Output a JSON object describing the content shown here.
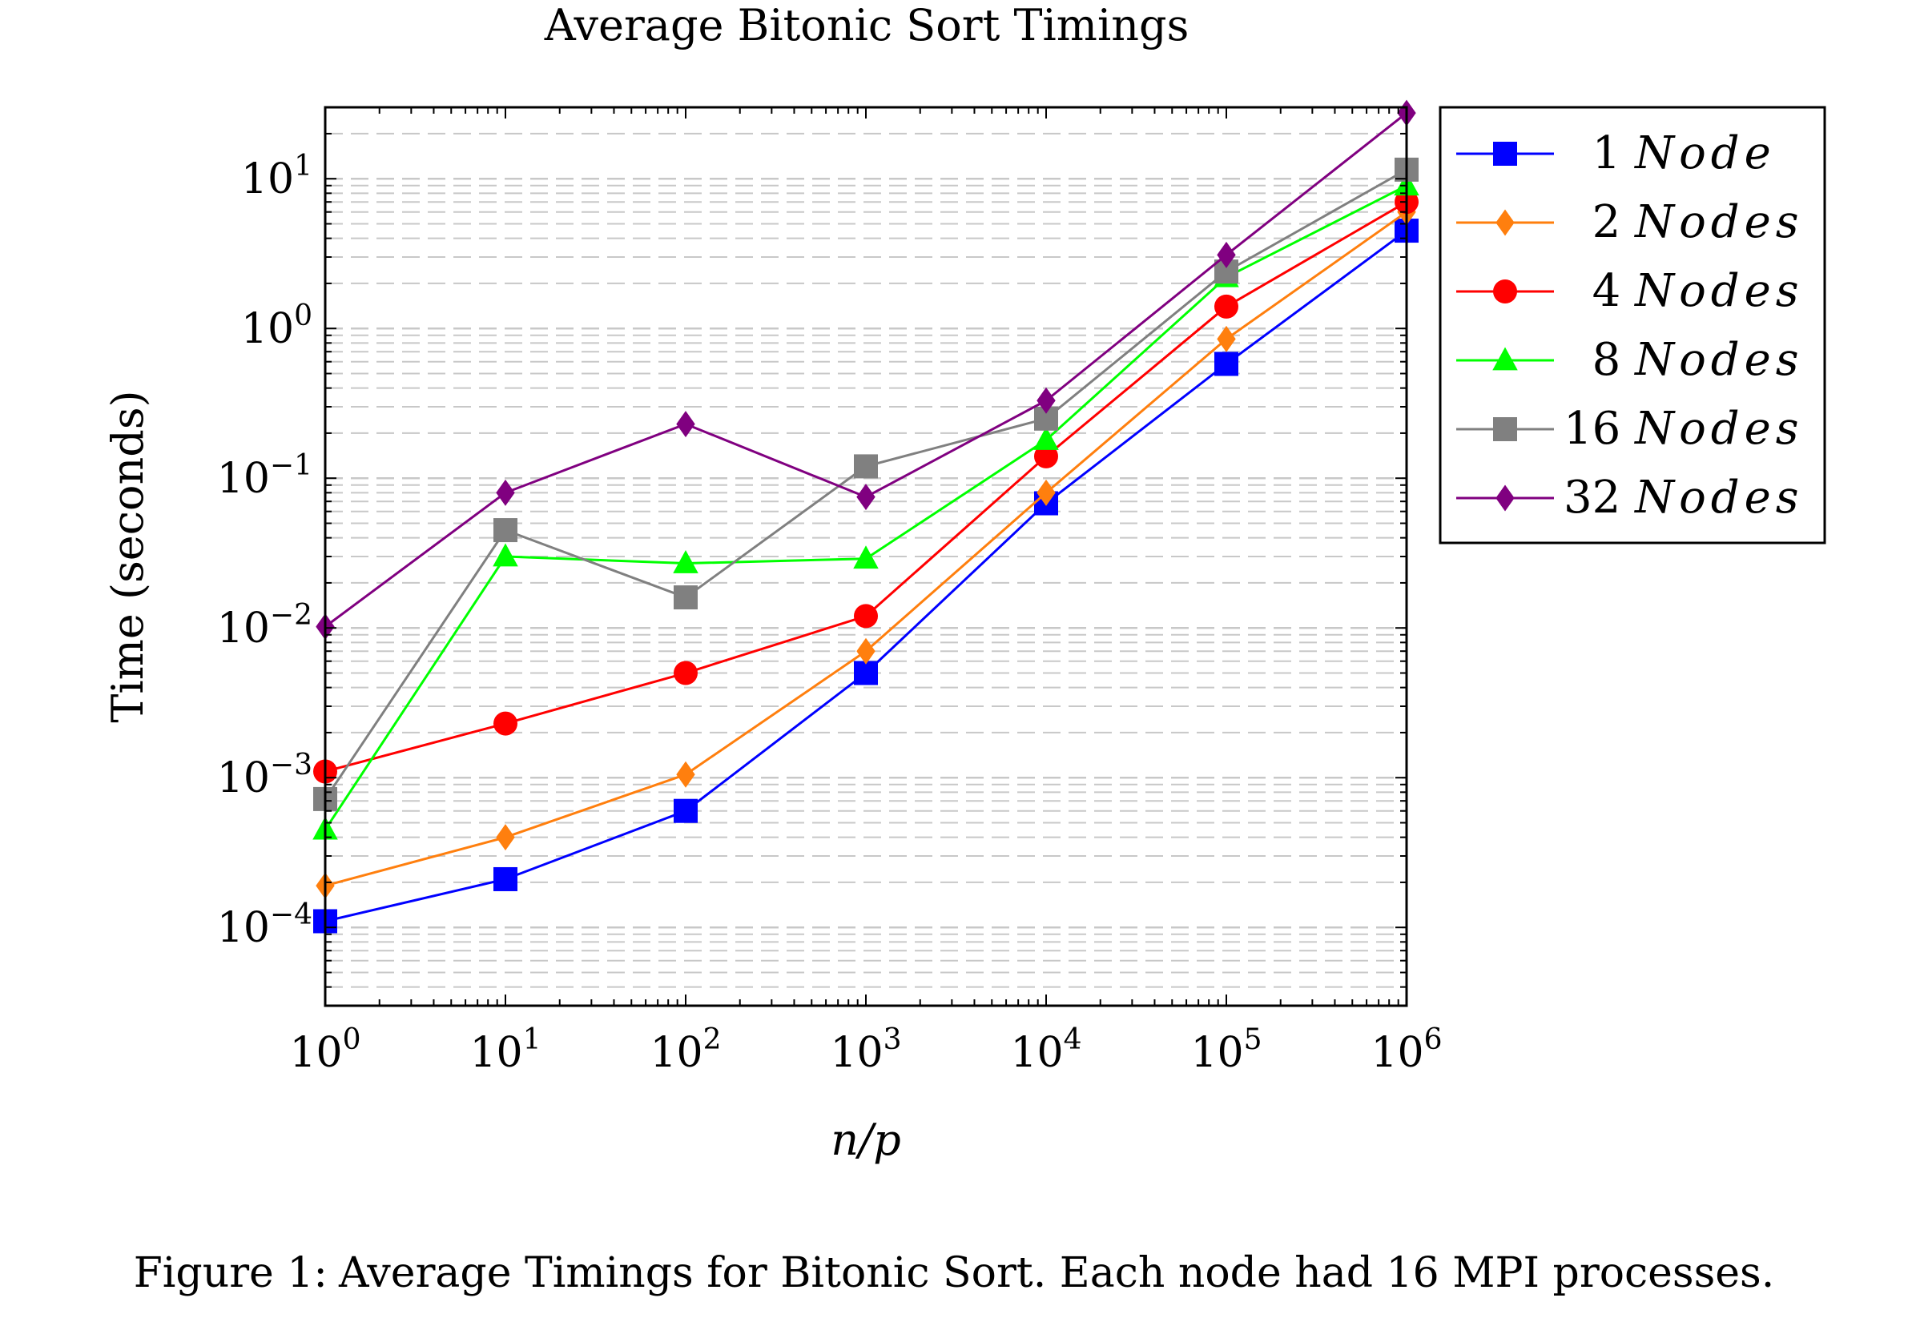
{
  "chart_data": {
    "type": "line",
    "title": "Average Bitonic Sort Timings",
    "xlabel": "n/p",
    "ylabel": "Time (seconds)",
    "x_scale": "log",
    "y_scale": "log",
    "xlim": [
      1,
      1000000
    ],
    "ylim": [
      3e-05,
      30
    ],
    "x": [
      1,
      10,
      100,
      1000,
      10000,
      100000,
      1000000
    ],
    "x_tick_base": "10",
    "x_tick_exponents": [
      "0",
      "1",
      "2",
      "3",
      "4",
      "5",
      "6"
    ],
    "y_ticks": [
      0.0001,
      0.001,
      0.01,
      0.1,
      1,
      10
    ],
    "y_tick_base": "10",
    "y_tick_exponents": [
      "−4",
      "−3",
      "−2",
      "−1",
      "0",
      "1"
    ],
    "grid": "major and minor horizontal, dashed",
    "legend_position": "outside-right-top",
    "series": [
      {
        "name_num": "1",
        "name_word": "Node",
        "color": "#0000ff",
        "marker": "square",
        "values": [
          0.00011,
          0.00021,
          0.0006,
          0.005,
          0.068,
          0.58,
          4.5
        ]
      },
      {
        "name_num": "2",
        "name_word": "Nodes",
        "color": "#ff7f0e",
        "marker": "diamond",
        "values": [
          0.00019,
          0.0004,
          0.00105,
          0.007,
          0.08,
          0.85,
          6.0
        ]
      },
      {
        "name_num": "4",
        "name_word": "Nodes",
        "color": "#ff0000",
        "marker": "circle",
        "values": [
          0.0011,
          0.0023,
          0.005,
          0.012,
          0.14,
          1.4,
          7.0
        ]
      },
      {
        "name_num": "8",
        "name_word": "Nodes",
        "color": "#00ff00",
        "marker": "triangle",
        "values": [
          0.00045,
          0.03,
          0.027,
          0.029,
          0.18,
          2.2,
          9.0
        ]
      },
      {
        "name_num": "16",
        "name_word": "Nodes",
        "color": "#808080",
        "marker": "square",
        "values": [
          0.00072,
          0.045,
          0.016,
          0.12,
          0.25,
          2.4,
          11.5
        ]
      },
      {
        "name_num": "32",
        "name_word": "Nodes",
        "color": "#800080",
        "marker": "diamond",
        "values": [
          0.0102,
          0.08,
          0.23,
          0.075,
          0.33,
          3.1,
          27.5
        ]
      }
    ]
  },
  "caption": {
    "label": "Figure 1:",
    "text": "Average Timings for Bitonic Sort. Each node had 16 MPI processes."
  }
}
